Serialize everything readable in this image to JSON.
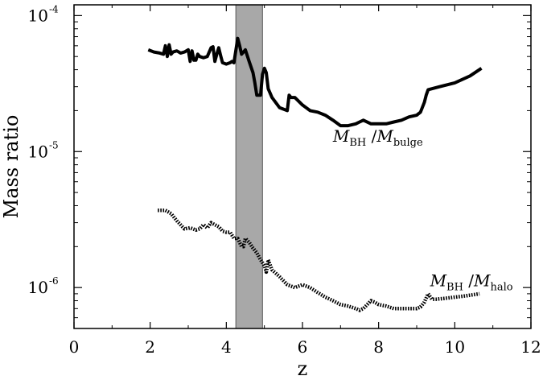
{
  "chart_data": {
    "type": "line",
    "title": "",
    "xlabel": "z",
    "ylabel": "Mass ratio",
    "xlim": [
      0,
      12
    ],
    "ylim": [
      5e-07,
      0.00012
    ],
    "yscale": "log",
    "grid": false,
    "x_ticks": [
      0,
      2,
      4,
      6,
      8,
      10,
      12
    ],
    "x_tick_labels": [
      "0",
      "2",
      "4",
      "6",
      "8",
      "10",
      "12"
    ],
    "y_ticks": [
      {
        "value": 1e-06,
        "base": "10",
        "exp": "-6"
      },
      {
        "value": 1e-05,
        "base": "10",
        "exp": "-5"
      },
      {
        "value": 0.0001,
        "base": "10",
        "exp": "-4"
      }
    ],
    "shaded_band": {
      "x": [
        4.25,
        4.95
      ],
      "color": "#a8a8a8"
    },
    "series": [
      {
        "style": "solid",
        "color": "#000000",
        "label_parts": {
          "main": "M",
          "sub1": "BH",
          "sep": " /",
          "main2": "M",
          "sub2": "bulge"
        },
        "label_at": [
          6.8,
          1.18e-05
        ],
        "x": [
          1.95,
          2.1,
          2.25,
          2.35,
          2.4,
          2.45,
          2.5,
          2.55,
          2.6,
          2.7,
          2.8,
          2.9,
          3.0,
          3.05,
          3.1,
          3.15,
          3.2,
          3.25,
          3.3,
          3.4,
          3.5,
          3.6,
          3.65,
          3.7,
          3.75,
          3.8,
          3.85,
          3.9,
          4.0,
          4.1,
          4.15,
          4.2,
          4.3,
          4.35,
          4.4,
          4.5,
          4.6,
          4.7,
          4.75,
          4.8,
          4.9,
          4.95,
          5.0,
          5.05,
          5.1,
          5.2,
          5.4,
          5.6,
          5.65,
          5.7,
          5.8,
          6.0,
          6.2,
          6.4,
          6.6,
          6.8,
          7.0,
          7.2,
          7.4,
          7.5,
          7.6,
          7.8,
          8.0,
          8.2,
          8.4,
          8.6,
          8.8,
          9.0,
          9.1,
          9.2,
          9.25,
          9.3,
          9.6,
          10.0,
          10.4,
          10.7
        ],
        "y": [
          5.6e-05,
          5.4e-05,
          5.3e-05,
          5.2e-05,
          6e-05,
          5e-05,
          6.1e-05,
          5.2e-05,
          5.4e-05,
          5.5e-05,
          5.3e-05,
          5.4e-05,
          5.6e-05,
          4.6e-05,
          5.5e-05,
          4.7e-05,
          4.7e-05,
          5.2e-05,
          5e-05,
          4.9e-05,
          5e-05,
          5.8e-05,
          5.9e-05,
          4.6e-05,
          5.2e-05,
          5.8e-05,
          5.1e-05,
          4.5e-05,
          4.4e-05,
          4.5e-05,
          4.6e-05,
          4.5e-05,
          6.8e-05,
          6e-05,
          5.2e-05,
          5.6e-05,
          4.6e-05,
          3.8e-05,
          3.2e-05,
          2.6e-05,
          2.6e-05,
          3.7e-05,
          4.1e-05,
          3.8e-05,
          2.9e-05,
          2.5e-05,
          2.1e-05,
          2e-05,
          2.6e-05,
          2.5e-05,
          2.5e-05,
          2.2e-05,
          2e-05,
          1.95e-05,
          1.85e-05,
          1.7e-05,
          1.55e-05,
          1.55e-05,
          1.6e-05,
          1.65e-05,
          1.7e-05,
          1.6e-05,
          1.6e-05,
          1.6e-05,
          1.65e-05,
          1.7e-05,
          1.8e-05,
          1.85e-05,
          1.95e-05,
          2.3e-05,
          2.6e-05,
          2.85e-05,
          3e-05,
          3.2e-05,
          3.6e-05,
          4.1e-05
        ]
      },
      {
        "style": "dotted",
        "color": "#000000",
        "label_parts": {
          "main": "M",
          "sub1": "BH",
          "sep": " /",
          "main2": "M",
          "sub2": "halo"
        },
        "label_at": [
          9.35,
          1.02e-06
        ],
        "x": [
          2.2,
          2.4,
          2.55,
          2.7,
          2.9,
          3.05,
          3.2,
          3.3,
          3.4,
          3.5,
          3.6,
          3.7,
          3.8,
          3.9,
          4.0,
          4.1,
          4.2,
          4.3,
          4.4,
          4.45,
          4.5,
          4.6,
          4.7,
          4.8,
          4.9,
          5.0,
          5.05,
          5.1,
          5.2,
          5.4,
          5.6,
          5.8,
          6.0,
          6.2,
          6.4,
          6.6,
          6.8,
          7.0,
          7.2,
          7.4,
          7.5,
          7.6,
          7.7,
          7.8,
          7.9,
          8.0,
          8.2,
          8.4,
          8.6,
          8.8,
          9.0,
          9.1,
          9.2,
          9.3,
          9.4,
          9.5,
          9.7,
          10.0,
          10.3,
          10.65
        ],
        "y": [
          3.7e-06,
          3.7e-06,
          3.5e-06,
          3.1e-06,
          2.7e-06,
          2.75e-06,
          2.65e-06,
          2.7e-06,
          2.9e-06,
          2.75e-06,
          3e-06,
          2.9e-06,
          2.8e-06,
          2.6e-06,
          2.55e-06,
          2.55e-06,
          2.3e-06,
          2.3e-06,
          2e-06,
          2e-06,
          2.3e-06,
          2.15e-06,
          1.95e-06,
          1.8e-06,
          1.6e-06,
          1.45e-06,
          1.3e-06,
          1.6e-06,
          1.35e-06,
          1.2e-06,
          1.05e-06,
          1e-06,
          1.05e-06,
          1e-06,
          9.2e-07,
          8.5e-07,
          8e-07,
          7.5e-07,
          7.3e-07,
          7e-07,
          6.8e-07,
          7e-07,
          7.5e-07,
          8e-07,
          7.8e-07,
          7.5e-07,
          7.3e-07,
          7e-07,
          7e-07,
          7e-07,
          7e-07,
          7.2e-07,
          7.8e-07,
          9e-07,
          8.2e-07,
          8.2e-07,
          8.3e-07,
          8.5e-07,
          8.7e-07,
          9e-07
        ]
      }
    ]
  }
}
